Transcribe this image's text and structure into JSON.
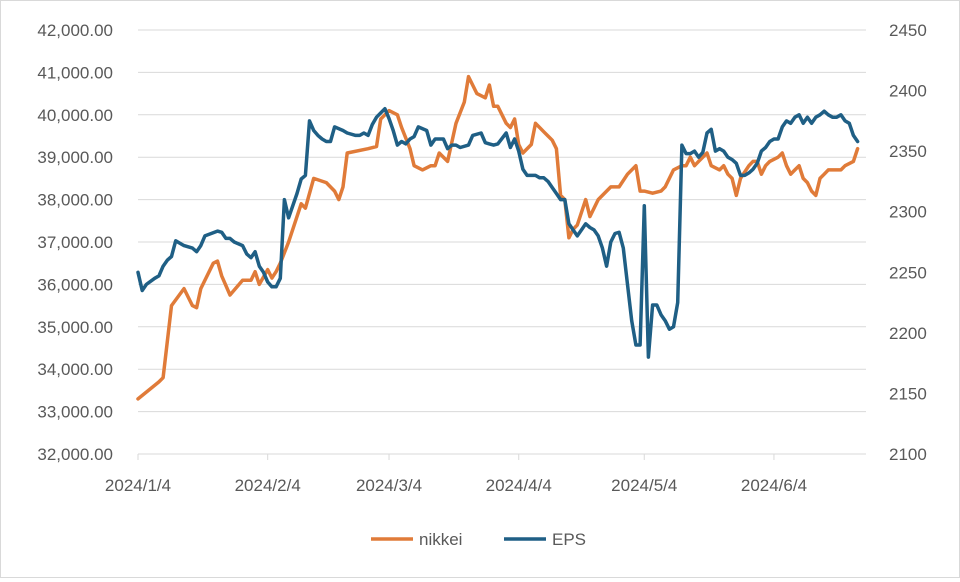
{
  "chart_data": {
    "type": "line",
    "title": "",
    "xlabel": "",
    "ylabel": "",
    "y2label": "",
    "grid": "horizontal",
    "legend": "bottom",
    "x_ticks": [
      {
        "day": 0,
        "label": "2024/1/4"
      },
      {
        "day": 31,
        "label": "2024/2/4"
      },
      {
        "day": 60,
        "label": "2024/3/4"
      },
      {
        "day": 91,
        "label": "2024/4/4"
      },
      {
        "day": 121,
        "label": "2024/5/4"
      },
      {
        "day": 152,
        "label": "2024/6/4"
      }
    ],
    "x_range_days": [
      0,
      174
    ],
    "ylim": [
      32000,
      42000
    ],
    "y_ticks": [
      "32,000.00",
      "33,000.00",
      "34,000.00",
      "35,000.00",
      "36,000.00",
      "37,000.00",
      "38,000.00",
      "39,000.00",
      "40,000.00",
      "41,000.00",
      "42,000.00"
    ],
    "y2lim": [
      2100,
      2450
    ],
    "y2_ticks": [
      "2100",
      "2150",
      "2200",
      "2250",
      "2300",
      "2350",
      "2400",
      "2450"
    ],
    "series": [
      {
        "name": "nikkei",
        "color": "#E07B39",
        "axis": "left",
        "points": [
          [
            0,
            33300
          ],
          [
            5,
            33700
          ],
          [
            6,
            33800
          ],
          [
            8,
            35500
          ],
          [
            11,
            35900
          ],
          [
            13,
            35500
          ],
          [
            14,
            35450
          ],
          [
            15,
            35900
          ],
          [
            18,
            36500
          ],
          [
            19,
            36550
          ],
          [
            20,
            36200
          ],
          [
            22,
            35750
          ],
          [
            25,
            36100
          ],
          [
            27,
            36100
          ],
          [
            28,
            36300
          ],
          [
            29,
            36000
          ],
          [
            31,
            36350
          ],
          [
            32,
            36150
          ],
          [
            33,
            36300
          ],
          [
            34,
            36500
          ],
          [
            36,
            37000
          ],
          [
            39,
            37900
          ],
          [
            40,
            37800
          ],
          [
            42,
            38500
          ],
          [
            45,
            38400
          ],
          [
            47,
            38200
          ],
          [
            48,
            38000
          ],
          [
            49,
            38300
          ],
          [
            50,
            39100
          ],
          [
            55,
            39200
          ],
          [
            57,
            39250
          ],
          [
            58,
            39900
          ],
          [
            60,
            40100
          ],
          [
            62,
            40000
          ],
          [
            63,
            39700
          ],
          [
            65,
            39200
          ],
          [
            66,
            38800
          ],
          [
            68,
            38700
          ],
          [
            70,
            38800
          ],
          [
            71,
            38800
          ],
          [
            72,
            39100
          ],
          [
            74,
            38900
          ],
          [
            76,
            39800
          ],
          [
            78,
            40300
          ],
          [
            79,
            40900
          ],
          [
            81,
            40500
          ],
          [
            83,
            40400
          ],
          [
            84,
            40700
          ],
          [
            85,
            40200
          ],
          [
            86,
            40200
          ],
          [
            88,
            39800
          ],
          [
            89,
            39700
          ],
          [
            90,
            39900
          ],
          [
            91,
            39300
          ],
          [
            92,
            39100
          ],
          [
            94,
            39300
          ],
          [
            95,
            39800
          ],
          [
            97,
            39600
          ],
          [
            98,
            39500
          ],
          [
            99,
            39400
          ],
          [
            100,
            39200
          ],
          [
            101,
            38100
          ],
          [
            102,
            38000
          ],
          [
            103,
            37100
          ],
          [
            104,
            37300
          ],
          [
            105,
            37400
          ],
          [
            107,
            38000
          ],
          [
            108,
            37600
          ],
          [
            110,
            38000
          ],
          [
            113,
            38300
          ],
          [
            115,
            38300
          ],
          [
            117,
            38600
          ],
          [
            119,
            38800
          ],
          [
            120,
            38200
          ],
          [
            121,
            38200
          ],
          [
            123,
            38150
          ],
          [
            125,
            38200
          ],
          [
            126,
            38300
          ],
          [
            128,
            38700
          ],
          [
            130,
            38800
          ],
          [
            131,
            38800
          ],
          [
            132,
            39000
          ],
          [
            133,
            38800
          ],
          [
            134,
            38900
          ],
          [
            136,
            39100
          ],
          [
            137,
            38800
          ],
          [
            139,
            38700
          ],
          [
            140,
            38800
          ],
          [
            141,
            38600
          ],
          [
            142,
            38500
          ],
          [
            143,
            38100
          ],
          [
            144,
            38500
          ],
          [
            146,
            38800
          ],
          [
            147,
            38900
          ],
          [
            148,
            38900
          ],
          [
            149,
            38600
          ],
          [
            150,
            38800
          ],
          [
            151,
            38900
          ],
          [
            153,
            39000
          ],
          [
            154,
            39100
          ],
          [
            155,
            38800
          ],
          [
            156,
            38600
          ],
          [
            157,
            38700
          ],
          [
            158,
            38800
          ],
          [
            159,
            38500
          ],
          [
            160,
            38400
          ],
          [
            161,
            38200
          ],
          [
            162,
            38100
          ],
          [
            163,
            38500
          ],
          [
            164,
            38600
          ],
          [
            165,
            38700
          ],
          [
            166,
            38700
          ],
          [
            168,
            38700
          ],
          [
            169,
            38800
          ],
          [
            171,
            38900
          ],
          [
            172,
            39200
          ]
        ]
      },
      {
        "name": "EPS",
        "color": "#1F5F85",
        "axis": "right",
        "points": [
          [
            0,
            2250
          ],
          [
            1,
            2235
          ],
          [
            2,
            2240
          ],
          [
            4,
            2245
          ],
          [
            5,
            2247
          ],
          [
            6,
            2255
          ],
          [
            7,
            2260
          ],
          [
            8,
            2263
          ],
          [
            9,
            2276
          ],
          [
            11,
            2272
          ],
          [
            13,
            2270
          ],
          [
            14,
            2267
          ],
          [
            15,
            2272
          ],
          [
            16,
            2280
          ],
          [
            19,
            2284
          ],
          [
            20,
            2283
          ],
          [
            21,
            2278
          ],
          [
            22,
            2278
          ],
          [
            23,
            2275
          ],
          [
            25,
            2272
          ],
          [
            26,
            2265
          ],
          [
            27,
            2262
          ],
          [
            28,
            2267
          ],
          [
            29,
            2255
          ],
          [
            30,
            2250
          ],
          [
            31,
            2242
          ],
          [
            32,
            2238
          ],
          [
            33,
            2238
          ],
          [
            34,
            2245
          ],
          [
            35,
            2310
          ],
          [
            36,
            2295
          ],
          [
            37,
            2305
          ],
          [
            38,
            2315
          ],
          [
            39,
            2327
          ],
          [
            40,
            2330
          ],
          [
            41,
            2375
          ],
          [
            42,
            2367
          ],
          [
            43,
            2363
          ],
          [
            44,
            2360
          ],
          [
            45,
            2358
          ],
          [
            46,
            2358
          ],
          [
            47,
            2370
          ],
          [
            49,
            2367
          ],
          [
            50,
            2365
          ],
          [
            52,
            2363
          ],
          [
            53,
            2363
          ],
          [
            54,
            2365
          ],
          [
            55,
            2363
          ],
          [
            56,
            2372
          ],
          [
            57,
            2378
          ],
          [
            59,
            2385
          ],
          [
            60,
            2377
          ],
          [
            61,
            2367
          ],
          [
            62,
            2355
          ],
          [
            63,
            2358
          ],
          [
            64,
            2356
          ],
          [
            65,
            2360
          ],
          [
            66,
            2362
          ],
          [
            67,
            2370
          ],
          [
            69,
            2367
          ],
          [
            70,
            2355
          ],
          [
            71,
            2360
          ],
          [
            72,
            2360
          ],
          [
            73,
            2360
          ],
          [
            74,
            2352
          ],
          [
            75,
            2355
          ],
          [
            76,
            2355
          ],
          [
            77,
            2353
          ],
          [
            79,
            2355
          ],
          [
            80,
            2363
          ],
          [
            82,
            2365
          ],
          [
            83,
            2357
          ],
          [
            84,
            2356
          ],
          [
            85,
            2355
          ],
          [
            86,
            2356
          ],
          [
            88,
            2365
          ],
          [
            89,
            2353
          ],
          [
            90,
            2360
          ],
          [
            91,
            2350
          ],
          [
            92,
            2335
          ],
          [
            93,
            2330
          ],
          [
            94,
            2330
          ],
          [
            95,
            2330
          ],
          [
            96,
            2328
          ],
          [
            97,
            2328
          ],
          [
            98,
            2325
          ],
          [
            99,
            2320
          ],
          [
            100,
            2315
          ],
          [
            101,
            2310
          ],
          [
            102,
            2310
          ],
          [
            103,
            2290
          ],
          [
            104,
            2285
          ],
          [
            105,
            2280
          ],
          [
            106,
            2285
          ],
          [
            107,
            2290
          ],
          [
            108,
            2287
          ],
          [
            109,
            2285
          ],
          [
            110,
            2280
          ],
          [
            111,
            2270
          ],
          [
            112,
            2255
          ],
          [
            113,
            2275
          ],
          [
            114,
            2282
          ],
          [
            115,
            2283
          ],
          [
            116,
            2270
          ],
          [
            117,
            2240
          ],
          [
            118,
            2210
          ],
          [
            119,
            2190
          ],
          [
            120,
            2190
          ],
          [
            121,
            2305
          ],
          [
            122,
            2180
          ],
          [
            123,
            2223
          ],
          [
            124,
            2223
          ],
          [
            125,
            2215
          ],
          [
            126,
            2210
          ],
          [
            127,
            2203
          ],
          [
            128,
            2205
          ],
          [
            129,
            2225
          ],
          [
            130,
            2355
          ],
          [
            131,
            2348
          ],
          [
            132,
            2348
          ],
          [
            133,
            2350
          ],
          [
            134,
            2345
          ],
          [
            135,
            2349
          ],
          [
            136,
            2365
          ],
          [
            137,
            2368
          ],
          [
            138,
            2350
          ],
          [
            139,
            2352
          ],
          [
            140,
            2350
          ],
          [
            141,
            2345
          ],
          [
            142,
            2343
          ],
          [
            143,
            2340
          ],
          [
            144,
            2330
          ],
          [
            145,
            2330
          ],
          [
            146,
            2332
          ],
          [
            147,
            2335
          ],
          [
            148,
            2340
          ],
          [
            149,
            2350
          ],
          [
            150,
            2353
          ],
          [
            151,
            2358
          ],
          [
            152,
            2360
          ],
          [
            153,
            2360
          ],
          [
            154,
            2370
          ],
          [
            155,
            2375
          ],
          [
            156,
            2373
          ],
          [
            157,
            2378
          ],
          [
            158,
            2380
          ],
          [
            159,
            2373
          ],
          [
            160,
            2378
          ],
          [
            161,
            2373
          ],
          [
            162,
            2378
          ],
          [
            163,
            2380
          ],
          [
            164,
            2383
          ],
          [
            165,
            2380
          ],
          [
            166,
            2378
          ],
          [
            167,
            2378
          ],
          [
            168,
            2380
          ],
          [
            169,
            2375
          ],
          [
            170,
            2373
          ],
          [
            171,
            2363
          ],
          [
            172,
            2358
          ]
        ]
      }
    ]
  }
}
